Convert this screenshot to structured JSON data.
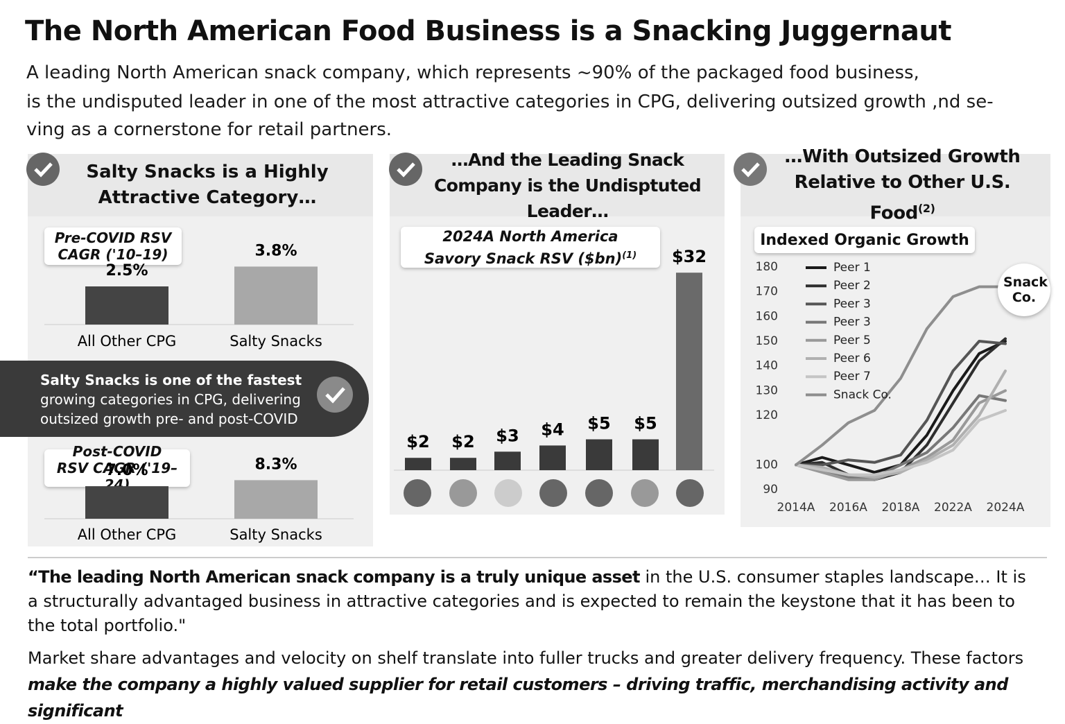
{
  "header": {
    "title": "The North American Food Business is a Snacking Juggernaut",
    "subtitle_lines": [
      "A leading North American snack company, which represents ~90% of the packaged food business,",
      "is the undisputed leader in one of the most attractive categories in CPG, delivering outsized growth ,nd se-",
      "ving as a cornerstone for retail partners."
    ]
  },
  "panels": [
    {
      "heading": "Salty Snacks is a Highly Attractive Category…"
    },
    {
      "heading": "…And the Leading Snack Company is the Undisptuted Leader…"
    },
    {
      "heading": "…With Outsized Growth Relative to Other U.S. Food",
      "heading_note": "(2)"
    }
  ],
  "banner": {
    "bold": "Salty Snacks is one of the fastest",
    "text": "growing categories in CPG, delivering outsized growth pre- and post-COVID"
  },
  "chart_data": [
    {
      "type": "bar",
      "title": "Pre-COVID RSV CAGR ('10–19)",
      "categories": [
        "All Other CPG",
        "Salty Snacks"
      ],
      "values": [
        2.5,
        3.8
      ],
      "value_labels": [
        "2.5%",
        "3.8%"
      ],
      "colors": [
        "#444444",
        "#a8a8a8"
      ]
    },
    {
      "type": "bar",
      "title": "Post-COVID RSV CAGR ('19–24)",
      "categories": [
        "All Other CPG",
        "Salty Snacks"
      ],
      "values": [
        7.0,
        8.3
      ],
      "value_labels": [
        "7.0%",
        "8.3%"
      ],
      "colors": [
        "#444444",
        "#a8a8a8"
      ]
    },
    {
      "type": "bar",
      "title": "2024A North America Savory Snack RSV ($bn)",
      "title_note": "(1)",
      "categories": [
        null,
        null,
        null,
        null,
        null,
        null,
        null
      ],
      "values": [
        2,
        2,
        3,
        4,
        5,
        5,
        32
      ],
      "value_labels": [
        "$2",
        "$2",
        "$3",
        "$4",
        "$5",
        "$5",
        "$32"
      ],
      "colors": [
        "#3a3a3a",
        "#3a3a3a",
        "#3a3a3a",
        "#3a3a3a",
        "#3a3a3a",
        "#3a3a3a",
        "#6a6a6a"
      ]
    },
    {
      "type": "line",
      "title": "Indexed Organic Growth",
      "annotation": "Snack Co.",
      "categories": [
        "2014A",
        null,
        "2016A",
        null,
        "2018A",
        null,
        "2022A",
        null,
        "2024A"
      ],
      "ylim": [
        90,
        180
      ],
      "yticks": [
        90,
        100,
        120,
        130,
        140,
        150,
        160,
        170,
        180
      ],
      "series": [
        {
          "name": "Peer 1",
          "color": "#1a1a1a",
          "values": [
            100,
            103,
            100,
            97,
            100,
            112,
            130,
            145,
            150
          ]
        },
        {
          "name": "Peer 2",
          "color": "#2e2e2e",
          "values": [
            100,
            101,
            96,
            94,
            97,
            108,
            125,
            142,
            151
          ]
        },
        {
          "name": "Peer 3",
          "color": "#555555",
          "values": [
            100,
            100,
            102,
            101,
            104,
            118,
            138,
            150,
            149
          ]
        },
        {
          "name": "Peer 3",
          "color": "#777777",
          "values": [
            100,
            98,
            95,
            95,
            100,
            105,
            115,
            128,
            126
          ]
        },
        {
          "name": "Peer 5",
          "color": "#999999",
          "values": [
            100,
            97,
            94,
            94,
            98,
            103,
            110,
            125,
            130
          ]
        },
        {
          "name": "Peer 6",
          "color": "#b0b0b0",
          "values": [
            100,
            99,
            96,
            95,
            97,
            102,
            108,
            120,
            138
          ]
        },
        {
          "name": "Peer 7",
          "color": "#c4c4c4",
          "values": [
            100,
            98,
            96,
            96,
            98,
            101,
            106,
            118,
            122
          ]
        },
        {
          "name": "Snack Co.",
          "color": "#8e8e8e",
          "values": [
            100,
            108,
            117,
            122,
            135,
            155,
            168,
            172,
            172
          ]
        }
      ]
    }
  ],
  "quote": {
    "bold": "“The leading North American snack company is a truly unique asset",
    "text": " in the U.S. consumer staples landscape…  It is a structurally advantaged business in attractive categories and is expected to remain the keystone that it has been to the total portfolio.\""
  },
  "body": {
    "text": "Market share advantages and velocity on shelf translate into fuller trucks and greater delivery frequency. These factors ",
    "bold": "make the company a highly valued supplier for retail customers – driving traffic, merchandising activity and significant"
  }
}
